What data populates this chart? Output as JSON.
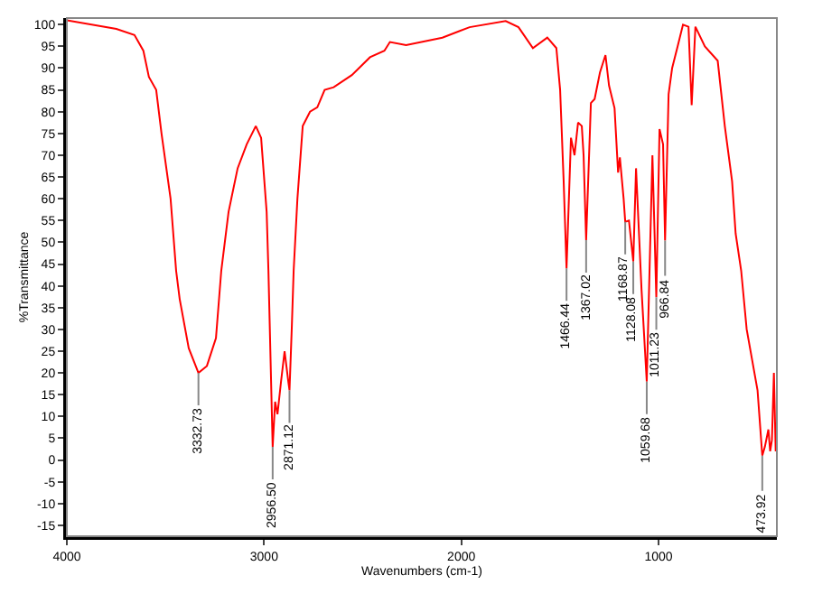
{
  "chart_data": {
    "type": "line",
    "xlabel": "Wavenumbers (cm-1)",
    "ylabel": "%Transmittance",
    "xlim": [
      4000,
      400
    ],
    "xticks": [
      4000,
      3000,
      2000,
      1000
    ],
    "ylim": [
      -17.5,
      101.5
    ],
    "yticks": [
      -15,
      -10,
      -5,
      0,
      5,
      10,
      15,
      20,
      25,
      30,
      35,
      40,
      45,
      50,
      55,
      60,
      65,
      70,
      75,
      80,
      85,
      90,
      95,
      100
    ],
    "grid": false,
    "marker": "none",
    "line_style": "solid",
    "series": [
      {
        "color": "#ff0000",
        "x": [
          4000,
          3749,
          3657,
          3612,
          3584,
          3547,
          3520,
          3474,
          3446,
          3428,
          3382,
          3332.73,
          3290,
          3244,
          3217,
          3180,
          3134,
          3088,
          3042,
          3015,
          2987,
          2978,
          2956.5,
          2944,
          2932,
          2914,
          2896,
          2877,
          2871.12,
          2859,
          2850,
          2831,
          2804,
          2767,
          2730,
          2693,
          2647,
          2555,
          2463,
          2390,
          2362,
          2280,
          2096,
          1958,
          1775,
          1710,
          1637,
          1564,
          1518,
          1499,
          1481,
          1466.44,
          1444,
          1426,
          1408,
          1389,
          1380,
          1367.02,
          1343,
          1324,
          1297,
          1269,
          1251,
          1223,
          1205,
          1196,
          1177,
          1168.87,
          1150,
          1128.08,
          1114,
          1086,
          1059.68,
          1031,
          1011.23,
          995,
          977,
          966.84,
          949,
          931,
          903,
          876,
          848,
          832,
          813,
          765,
          700,
          664,
          627,
          609,
          581,
          553,
          498,
          473.92,
          461,
          443,
          434,
          425,
          415,
          406
        ],
        "values": [
          101,
          99,
          97.6,
          94,
          88,
          85,
          75,
          60,
          43.5,
          37,
          25.7,
          20,
          21.6,
          28,
          43.5,
          57,
          67,
          72.5,
          76.7,
          74,
          57,
          43.6,
          3,
          13.4,
          10.5,
          18,
          25,
          18,
          16,
          31,
          43.5,
          60,
          76.7,
          80,
          81,
          85,
          85.6,
          88.4,
          92.5,
          94,
          96,
          95.3,
          97,
          99.4,
          100.8,
          99.4,
          94.6,
          97,
          94.6,
          85,
          64,
          44,
          74,
          70,
          77.5,
          76.7,
          70,
          50.5,
          82,
          82.9,
          89,
          93,
          86,
          80.8,
          66,
          69.5,
          60,
          54.7,
          55,
          45.6,
          67,
          39,
          18,
          70,
          37.4,
          76,
          72.5,
          50.4,
          84,
          90,
          95,
          100,
          99.5,
          81.5,
          99.5,
          95,
          91.7,
          76.7,
          64,
          52,
          43.5,
          30,
          16,
          1,
          3,
          7,
          2,
          4.6,
          20,
          2
        ]
      }
    ],
    "annotations": [
      {
        "text": "3332.73",
        "x": 3332.73,
        "y": 20
      },
      {
        "text": "2956.50",
        "x": 2956.5,
        "y": 3
      },
      {
        "text": "2871.12",
        "x": 2871.12,
        "y": 16
      },
      {
        "text": "1466.44",
        "x": 1466.44,
        "y": 44
      },
      {
        "text": "1367.02",
        "x": 1367.02,
        "y": 50.5
      },
      {
        "text": "1168.87",
        "x": 1168.87,
        "y": 54.7
      },
      {
        "text": "1128.08",
        "x": 1128.08,
        "y": 45.6
      },
      {
        "text": "1059.68",
        "x": 1059.68,
        "y": 18
      },
      {
        "text": "1011.23",
        "x": 1011.23,
        "y": 37.4
      },
      {
        "text": "966.84",
        "x": 966.84,
        "y": 50.4
      },
      {
        "text": "473.92",
        "x": 473.92,
        "y": 1
      }
    ]
  }
}
